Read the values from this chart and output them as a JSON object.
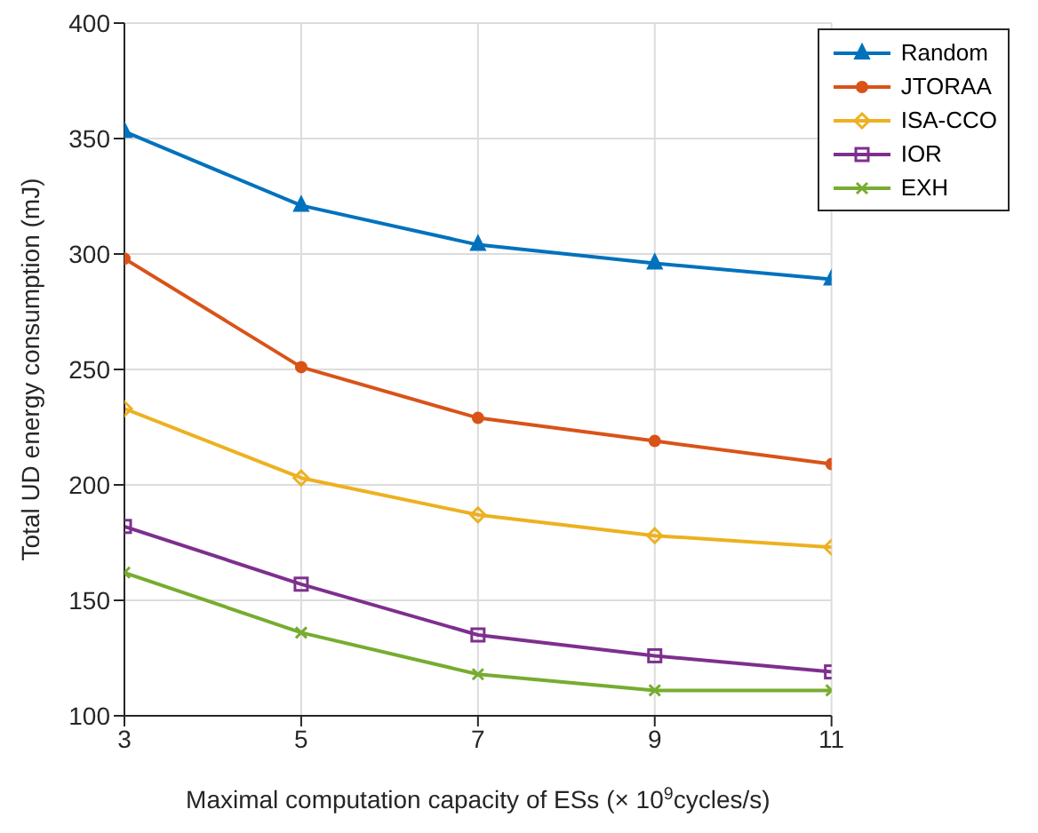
{
  "chart_data": {
    "type": "line",
    "xlabel": "Maximal computation capacity of ESs (× 10$^{9}$cycles/s)",
    "ylabel": "Total UD energy consumption (mJ)",
    "x": [
      3,
      5,
      7,
      9,
      11
    ],
    "series": [
      {
        "name": "Random",
        "color": "#0072bd",
        "marker": "triangle",
        "values": [
          353,
          321,
          304,
          296,
          289
        ]
      },
      {
        "name": "JTORAA",
        "color": "#d95319",
        "marker": "circle",
        "values": [
          298,
          251,
          229,
          219,
          209
        ]
      },
      {
        "name": "ISA-CCO",
        "color": "#edb120",
        "marker": "diamond",
        "values": [
          233,
          203,
          187,
          178,
          173
        ]
      },
      {
        "name": "IOR",
        "color": "#7e2f8e",
        "marker": "square",
        "values": [
          182,
          157,
          135,
          126,
          119
        ]
      },
      {
        "name": "EXH",
        "color": "#77ac30",
        "marker": "cross",
        "values": [
          162,
          136,
          118,
          111,
          111
        ]
      }
    ],
    "xlim": [
      3,
      11
    ],
    "xticks": [
      3,
      5,
      7,
      9,
      11
    ],
    "ylim": [
      100,
      400
    ],
    "yticks": [
      100,
      150,
      200,
      250,
      300,
      350,
      400
    ],
    "grid": true,
    "legend": "top right"
  }
}
